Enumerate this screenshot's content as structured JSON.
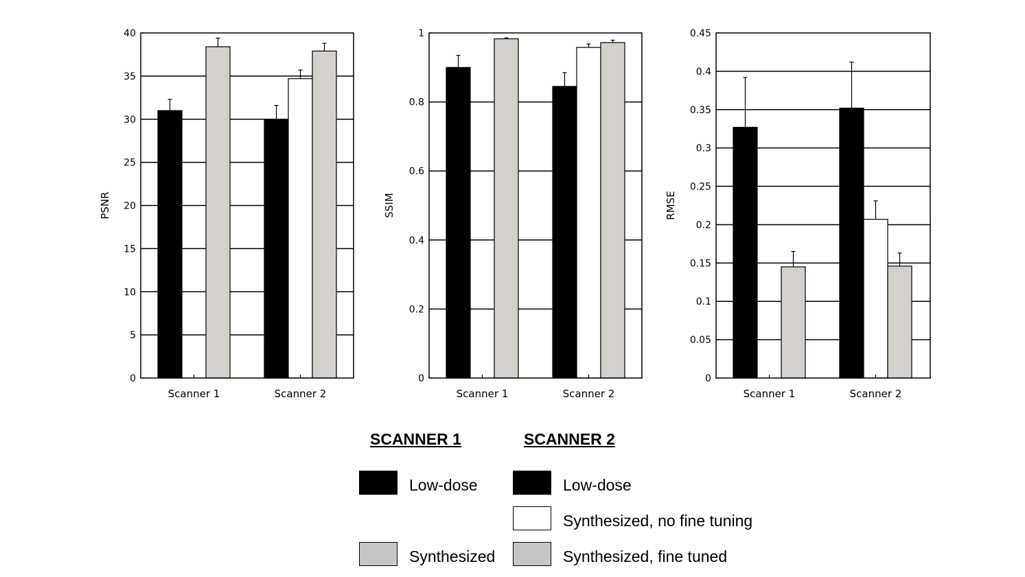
{
  "colors": {
    "low_dose": "#000000",
    "synth_no_ft": "#ffffff",
    "synth": "#d4d0cb",
    "grid": "#000000"
  },
  "chart_data": [
    {
      "type": "bar",
      "ylabel": "PSNR",
      "ylim": [
        0,
        40
      ],
      "yticks": [
        "0",
        "5",
        "10",
        "15",
        "20",
        "25",
        "30",
        "35",
        "40"
      ],
      "categories": [
        "Scanner 1",
        "Scanner 2"
      ],
      "grid": true,
      "series": [
        {
          "name": "Low-dose",
          "values": [
            31.0,
            30.0
          ],
          "errors": [
            1.3,
            1.6
          ]
        },
        {
          "name": "Synthesized, no fine tuning",
          "values": [
            null,
            34.7
          ],
          "errors": [
            null,
            1.0
          ]
        },
        {
          "name": "Synthesized",
          "values": [
            38.4,
            37.9
          ],
          "errors": [
            1.0,
            0.9
          ]
        }
      ]
    },
    {
      "type": "bar",
      "ylabel": "SSIM",
      "ylim": [
        0,
        1
      ],
      "yticks": [
        "0",
        "0.2",
        "0.4",
        "0.6",
        "0.8",
        "1"
      ],
      "categories": [
        "Scanner 1",
        "Scanner 2"
      ],
      "grid": true,
      "series": [
        {
          "name": "Low-dose",
          "values": [
            0.9,
            0.845
          ],
          "errors": [
            0.035,
            0.04
          ]
        },
        {
          "name": "Synthesized, no fine tuning",
          "values": [
            null,
            0.958
          ],
          "errors": [
            null,
            0.01
          ]
        },
        {
          "name": "Synthesized",
          "values": [
            0.983,
            0.972
          ],
          "errors": [
            0.003,
            0.007
          ]
        }
      ]
    },
    {
      "type": "bar",
      "ylabel": "RMSE",
      "ylim": [
        0,
        0.45
      ],
      "yticks": [
        "0",
        "0.05",
        "0.1",
        "0.15",
        "0.2",
        "0.25",
        "0.3",
        "0.35",
        "0.4",
        "0.45"
      ],
      "categories": [
        "Scanner 1",
        "Scanner 2"
      ],
      "grid": true,
      "series": [
        {
          "name": "Low-dose",
          "values": [
            0.327,
            0.352
          ],
          "errors": [
            0.065,
            0.06
          ]
        },
        {
          "name": "Synthesized, no fine tuning",
          "values": [
            null,
            0.207
          ],
          "errors": [
            null,
            0.024
          ]
        },
        {
          "name": "Synthesized",
          "values": [
            0.145,
            0.146
          ],
          "errors": [
            0.02,
            0.017
          ]
        }
      ]
    }
  ],
  "legend": {
    "scanner1": {
      "heading": "SCANNER 1",
      "items": [
        "Low-dose",
        "Synthesized"
      ]
    },
    "scanner2": {
      "heading": "SCANNER 2",
      "items": [
        "Low-dose",
        "Synthesized, no fine tuning",
        "Synthesized, fine tuned"
      ]
    }
  }
}
